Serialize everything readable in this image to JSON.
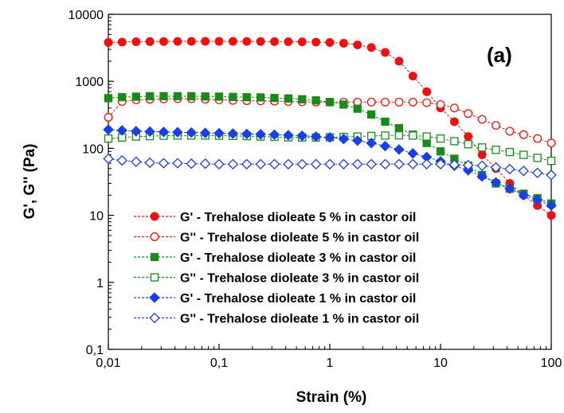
{
  "chart_data": {
    "type": "scatter",
    "panel_label": "(a)",
    "xlabel": "Strain (%)",
    "ylabel": "G', G'' (Pa)",
    "xscale": "log",
    "yscale": "log",
    "xlim": [
      0.01,
      100
    ],
    "ylim": [
      0.1,
      10000
    ],
    "x_ticks": [
      {
        "value": 0.01,
        "label": "0,01"
      },
      {
        "value": 0.1,
        "label": "0,1"
      },
      {
        "value": 1,
        "label": "1"
      },
      {
        "value": 10,
        "label": "10"
      },
      {
        "value": 100,
        "label": "100"
      }
    ],
    "y_ticks": [
      {
        "value": 0.1,
        "label": "0,1"
      },
      {
        "value": 1,
        "label": "1"
      },
      {
        "value": 10,
        "label": "10"
      },
      {
        "value": 100,
        "label": "100"
      },
      {
        "value": 1000,
        "label": "1000"
      },
      {
        "value": 10000,
        "label": "10000"
      }
    ],
    "grid": false,
    "legend_position": "bottom-center",
    "x": [
      0.01,
      0.0133,
      0.0178,
      0.0237,
      0.0316,
      0.0422,
      0.0562,
      0.075,
      0.1,
      0.1334,
      0.1778,
      0.2371,
      0.3162,
      0.4217,
      0.5623,
      0.7499,
      1.0,
      1.3335,
      1.7783,
      2.3714,
      3.1623,
      4.217,
      5.6234,
      7.4989,
      10.0,
      13.3352,
      17.7828,
      23.7137,
      31.6228,
      42.1697,
      56.2341,
      74.9894,
      100.0
    ],
    "series": [
      {
        "name": "G' - Trehalose dioleate 5 % in castor oil",
        "color": "#ee1111",
        "marker": "circle",
        "filled": true,
        "values": [
          3800,
          3850,
          3900,
          3920,
          3930,
          3940,
          3950,
          3950,
          3950,
          3950,
          3940,
          3930,
          3920,
          3900,
          3880,
          3850,
          3800,
          3700,
          3500,
          3200,
          2700,
          2000,
          1200,
          700,
          400,
          250,
          150,
          80,
          50,
          30,
          20,
          14,
          10
        ]
      },
      {
        "name": "G'' - Trehalose dioleate 5 % in castor oil",
        "color": "#ee1111",
        "marker": "circle",
        "filled": false,
        "values": [
          290,
          500,
          530,
          540,
          545,
          550,
          550,
          540,
          530,
          520,
          515,
          510,
          505,
          500,
          495,
          490,
          490,
          490,
          490,
          490,
          490,
          490,
          490,
          480,
          450,
          400,
          330,
          270,
          220,
          180,
          160,
          140,
          120
        ]
      },
      {
        "name": "G' - Trehalose dioleate 3 % in castor oil",
        "color": "#1a8a1a",
        "marker": "square",
        "filled": true,
        "values": [
          560,
          580,
          590,
          600,
          600,
          600,
          600,
          595,
          590,
          585,
          580,
          575,
          565,
          555,
          540,
          520,
          490,
          450,
          390,
          320,
          250,
          200,
          160,
          120,
          90,
          70,
          55,
          40,
          30,
          25,
          21,
          18,
          15
        ]
      },
      {
        "name": "G'' - Trehalose dioleate 3 % in castor oil",
        "color": "#1a8a1a",
        "marker": "square",
        "filled": false,
        "values": [
          140,
          145,
          150,
          152,
          154,
          155,
          155,
          155,
          154,
          153,
          152,
          150,
          148,
          146,
          145,
          145,
          146,
          148,
          150,
          153,
          155,
          156,
          155,
          150,
          140,
          128,
          115,
          103,
          95,
          88,
          80,
          72,
          65
        ]
      },
      {
        "name": "G' - Trehalose dioleate 1 % in castor oil",
        "color": "#1a3ee8",
        "marker": "diamond",
        "filled": true,
        "values": [
          190,
          185,
          180,
          178,
          176,
          174,
          172,
          170,
          168,
          166,
          164,
          162,
          160,
          157,
          154,
          150,
          145,
          138,
          130,
          120,
          108,
          96,
          84,
          74,
          64,
          55,
          47,
          38,
          31,
          25,
          20,
          17,
          14
        ]
      },
      {
        "name": "G'' - Trehalose dioleate 1 % in castor oil",
        "color": "#1a3ee8",
        "marker": "diamond",
        "filled": false,
        "values": [
          70,
          66,
          63,
          61,
          60,
          60,
          59,
          59,
          58,
          58,
          58,
          58,
          58,
          58,
          58,
          58,
          58,
          58,
          58,
          58,
          58,
          58,
          58,
          58,
          58,
          57,
          56,
          55,
          52,
          49,
          46,
          43,
          40
        ]
      }
    ]
  }
}
